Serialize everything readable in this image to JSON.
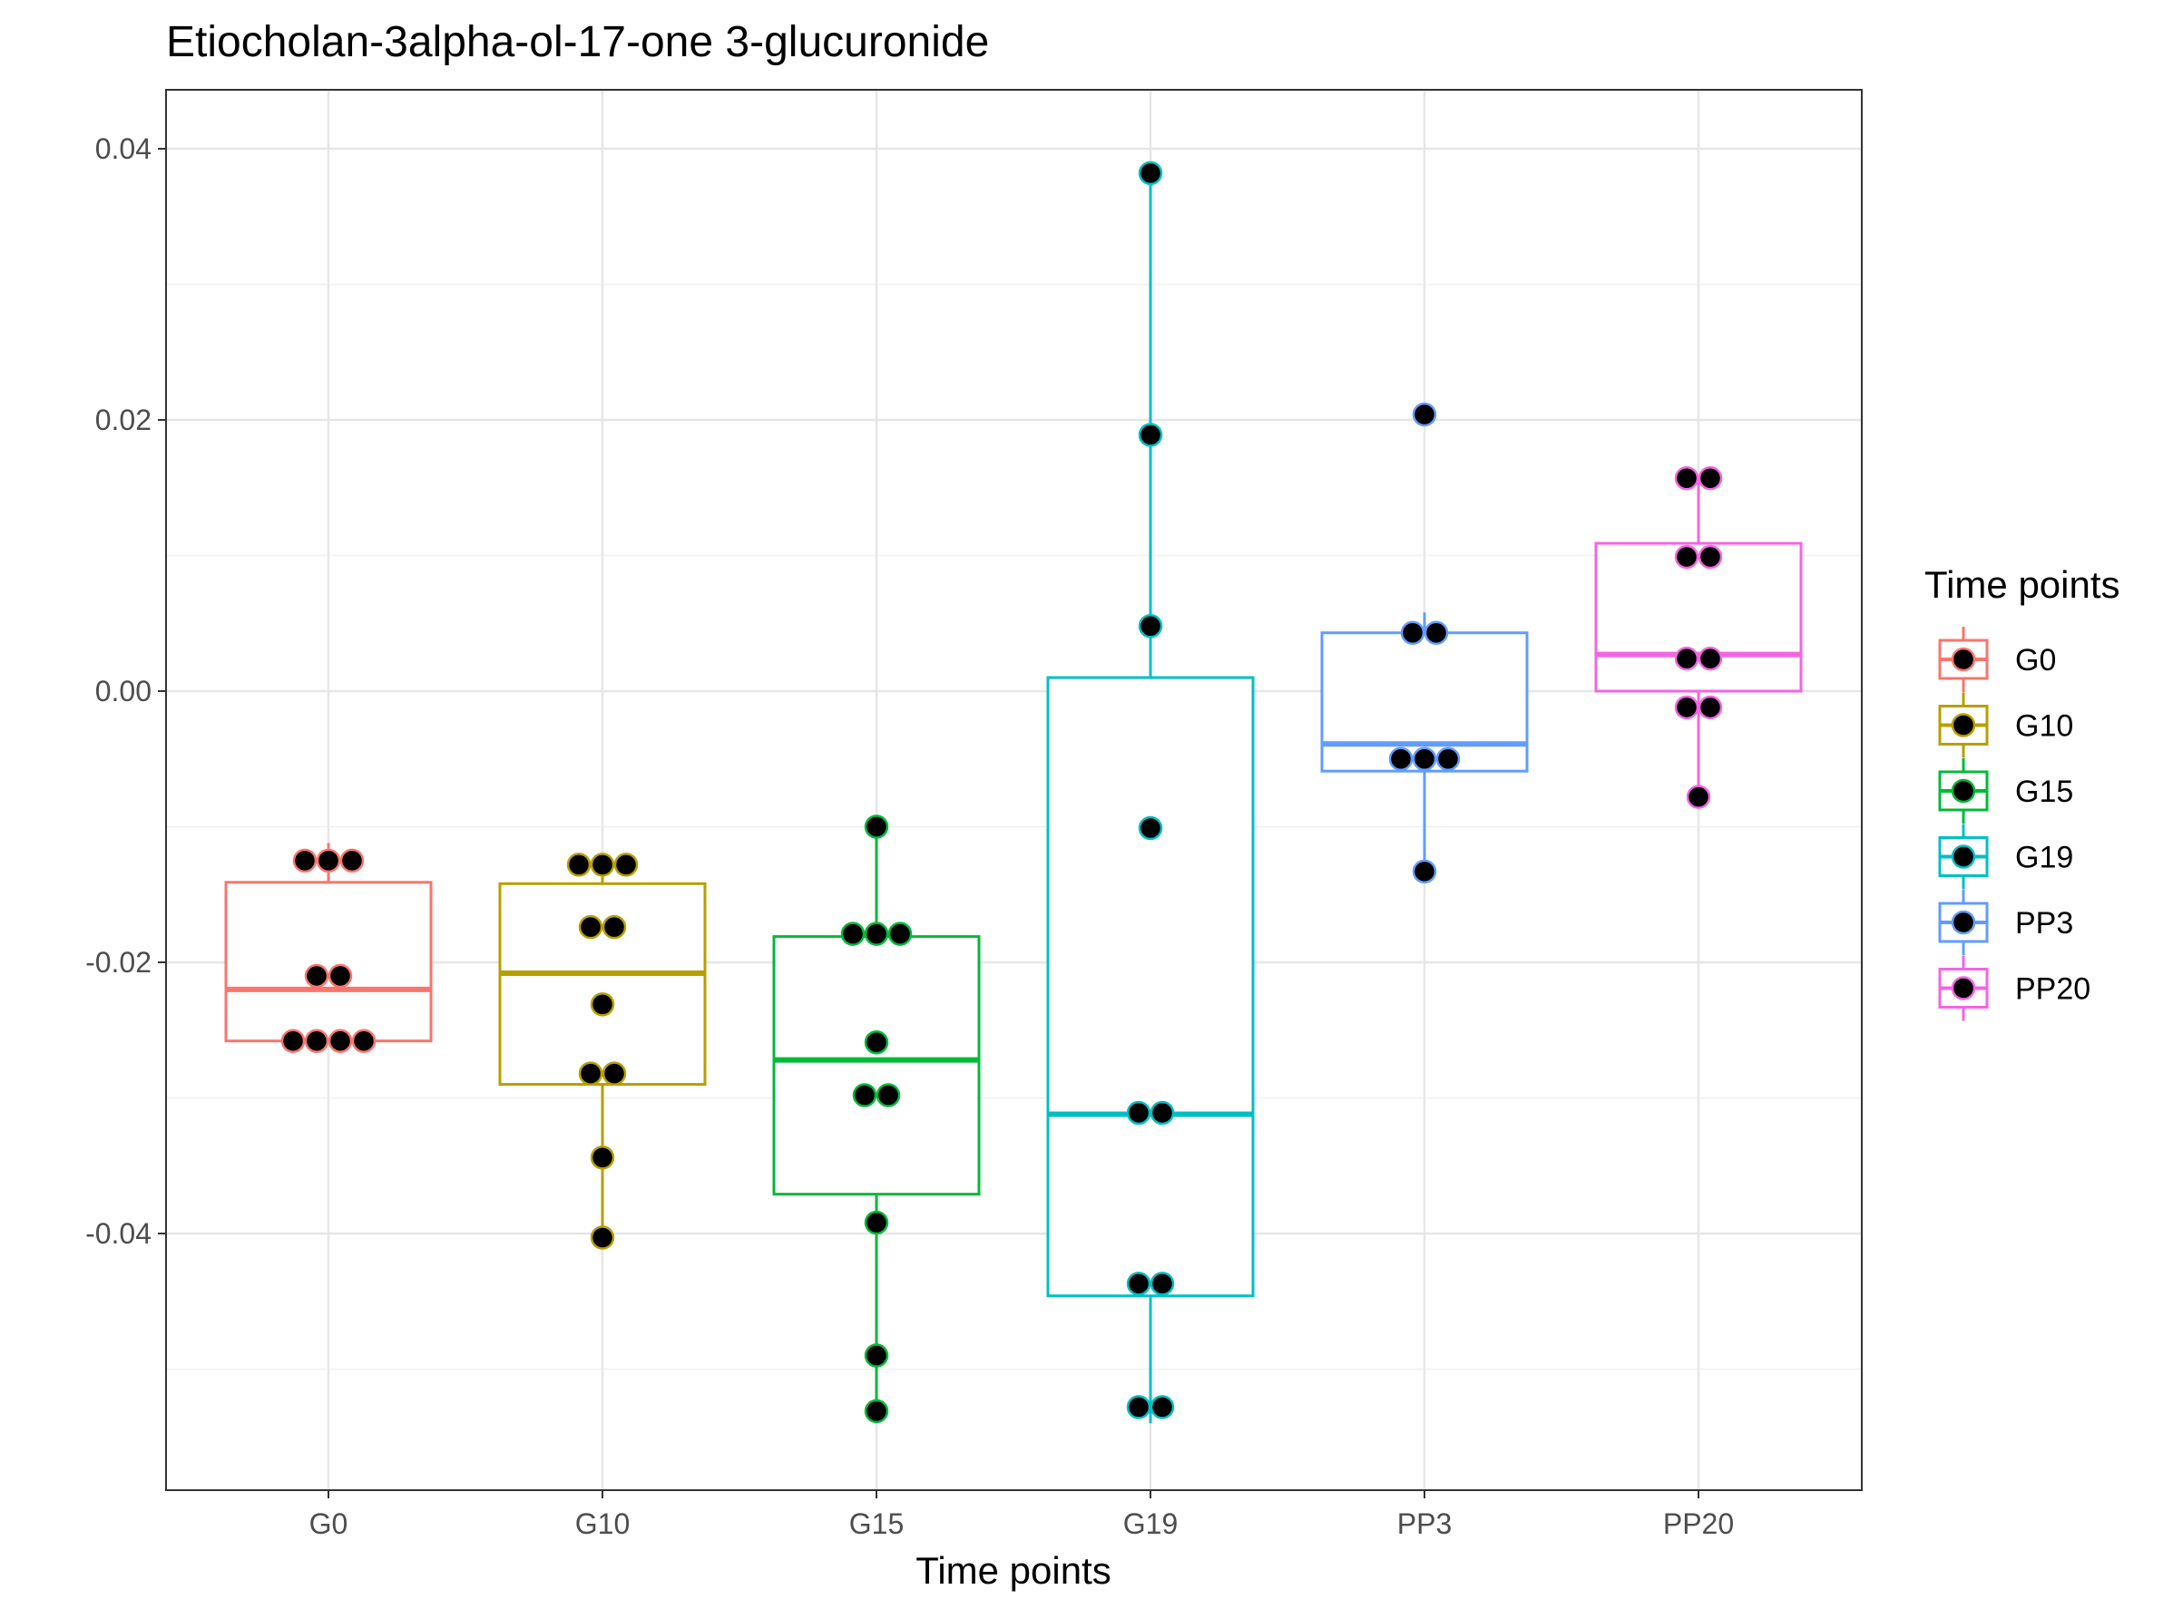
{
  "chart_data": {
    "type": "boxplot",
    "title": "Etiocholan-3alpha-ol-17-one 3-glucuronide",
    "xlabel": "Time points",
    "ylabel": "",
    "ylim": [
      -0.058,
      0.0445
    ],
    "y_ticks": [
      "0.04",
      "0.02",
      "0.00",
      "-0.02",
      "-0.04"
    ],
    "y_tick_values": [
      0.04,
      0.02,
      0.0,
      -0.02,
      -0.04
    ],
    "y_minor_ticks": [
      0.03,
      0.01,
      -0.01,
      -0.03,
      -0.05
    ],
    "grid": true,
    "legend": {
      "title": "Time points",
      "position": "right"
    },
    "categories": [
      "G0",
      "G10",
      "G15",
      "G19",
      "PP3",
      "PP20"
    ],
    "series": [
      {
        "name": "G0",
        "color": "#F8766D",
        "box": {
          "whisker_low": -0.0258,
          "q1": -0.0258,
          "median": -0.022,
          "q3": -0.0141,
          "whisker_high": -0.0112
        },
        "points": [
          -0.0125,
          -0.0125,
          -0.0125,
          -0.021,
          -0.021,
          -0.0258,
          -0.0258,
          -0.0258,
          -0.0258
        ]
      },
      {
        "name": "G10",
        "color": "#B79F00",
        "box": {
          "whisker_low": -0.0402,
          "q1": -0.029,
          "median": -0.0208,
          "q3": -0.0142,
          "whisker_high": -0.0128
        },
        "points": [
          -0.0128,
          -0.0128,
          -0.0128,
          -0.0174,
          -0.0174,
          -0.0231,
          -0.0282,
          -0.0282,
          -0.0344,
          -0.0403
        ]
      },
      {
        "name": "G15",
        "color": "#00BA38",
        "box": {
          "whisker_low": -0.053,
          "q1": -0.0371,
          "median": -0.0272,
          "q3": -0.0181,
          "whisker_high": -0.01
        },
        "points": [
          -0.01,
          -0.0179,
          -0.0179,
          -0.0179,
          -0.0259,
          -0.0298,
          -0.0298,
          -0.0392,
          -0.049,
          -0.0531
        ]
      },
      {
        "name": "G19",
        "color": "#00BFC4",
        "box": {
          "whisker_low": -0.054,
          "q1": -0.0446,
          "median": -0.0312,
          "q3": 0.001,
          "whisker_high": 0.0383
        },
        "points": [
          0.0382,
          0.0189,
          0.0048,
          -0.0101,
          -0.0311,
          -0.0311,
          -0.0437,
          -0.0437,
          -0.0528,
          -0.0528
        ]
      },
      {
        "name": "PP3",
        "color": "#619CFF",
        "box": {
          "whisker_low": -0.0133,
          "q1": -0.0059,
          "median": -0.0039,
          "q3": 0.0043,
          "whisker_high": 0.0058
        },
        "points": [
          0.0204,
          0.0043,
          0.0043,
          -0.005,
          -0.005,
          -0.005,
          -0.0133
        ]
      },
      {
        "name": "PP20",
        "color": "#F564E3",
        "box": {
          "whisker_low": -0.008,
          "q1": 0.0,
          "median": 0.0027,
          "q3": 0.0109,
          "whisker_high": 0.0157
        },
        "points": [
          0.0157,
          0.0157,
          0.0099,
          0.0099,
          0.0024,
          0.0024,
          -0.0012,
          -0.0012,
          -0.0078
        ]
      }
    ]
  }
}
